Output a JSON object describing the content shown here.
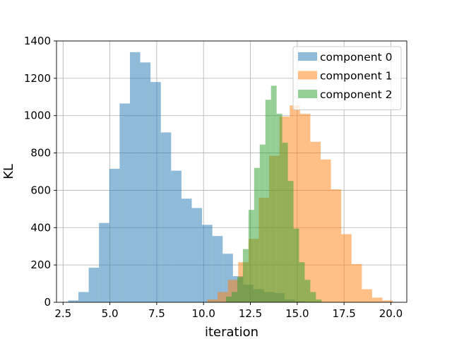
{
  "chart_data": {
    "type": "histogram",
    "title": "",
    "xlabel": "iteration",
    "ylabel": "KL",
    "xlim": [
      2.15,
      20.85
    ],
    "ylim": [
      0,
      1400
    ],
    "xticks": [
      2.5,
      5.0,
      7.5,
      10.0,
      12.5,
      15.0,
      17.5,
      20.0
    ],
    "xtick_labels": [
      "2.5",
      "5.0",
      "7.5",
      "10.0",
      "12.5",
      "15.0",
      "17.5",
      "20.0"
    ],
    "yticks": [
      0,
      200,
      400,
      600,
      800,
      1000,
      1200,
      1400
    ],
    "ytick_labels": [
      "0",
      "200",
      "400",
      "600",
      "800",
      "1000",
      "1200",
      "1400"
    ],
    "grid": true,
    "legend_position": "top-right",
    "bar_opacity": 0.5,
    "series": [
      {
        "name": "component 0",
        "color": "#1f77b4",
        "bin_edges": [
          2.77,
          3.32,
          3.87,
          4.42,
          4.97,
          5.52,
          6.07,
          6.62,
          7.17,
          7.72,
          8.27,
          8.82,
          9.37,
          9.92,
          10.47,
          11.02,
          11.57,
          12.12,
          12.67,
          13.22,
          13.77,
          14.32,
          14.87,
          15.42
        ],
        "counts": [
          10,
          55,
          185,
          425,
          715,
          1065,
          1340,
          1285,
          1180,
          910,
          705,
          555,
          505,
          415,
          355,
          260,
          140,
          95,
          70,
          55,
          50,
          15,
          5
        ]
      },
      {
        "name": "component 1",
        "color": "#ff7f0e",
        "bin_edges": [
          10.2,
          10.75,
          11.3,
          11.85,
          12.4,
          12.95,
          13.5,
          14.05,
          14.6,
          15.15,
          15.7,
          16.25,
          16.8,
          17.35,
          17.9,
          18.45,
          19.0,
          19.55,
          20.1
        ],
        "counts": [
          15,
          55,
          120,
          215,
          340,
          560,
          785,
          995,
          1055,
          1010,
          860,
          765,
          605,
          365,
          205,
          70,
          25,
          10
        ]
      },
      {
        "name": "component 2",
        "color": "#2ca02c",
        "bin_edges": [
          11.2,
          11.5,
          11.8,
          12.1,
          12.4,
          12.7,
          13.0,
          13.3,
          13.6,
          13.9,
          14.2,
          14.5,
          14.8,
          15.1,
          15.4,
          15.7,
          16.0,
          16.3
        ],
        "counts": [
          30,
          55,
          135,
          285,
          495,
          720,
          845,
          1085,
          1160,
          1010,
          855,
          650,
          395,
          215,
          120,
          55,
          15
        ]
      }
    ]
  }
}
